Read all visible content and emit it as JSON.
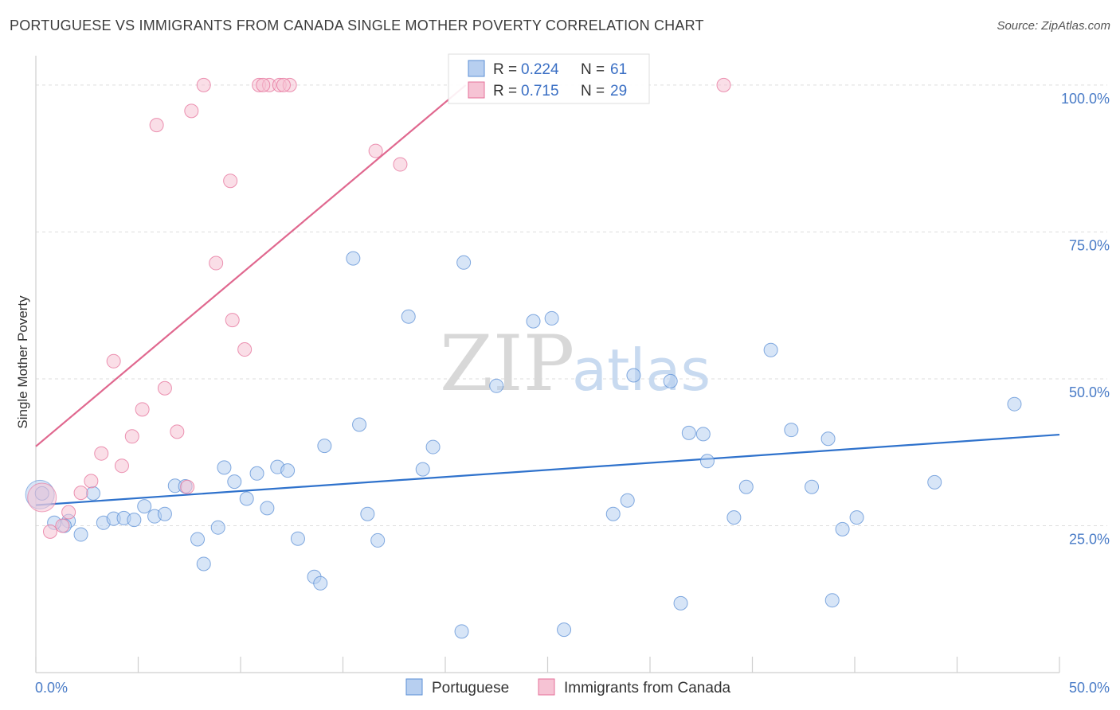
{
  "title": "PORTUGUESE VS IMMIGRANTS FROM CANADA SINGLE MOTHER POVERTY CORRELATION CHART",
  "source": "Source: ZipAtlas.com",
  "watermark": {
    "zip": "ZIP",
    "atlas": "atlas"
  },
  "colors": {
    "blue": "#5b8fd6",
    "blue_fill": "#b7cff0",
    "pink": "#e6709a",
    "pink_fill": "#f6c3d4",
    "blue_line": "#2f72cc",
    "pink_line": "#e0688f"
  },
  "legend": {
    "r_label": "R =",
    "n_label": "N =",
    "rows": [
      {
        "r": "0.224",
        "n": "61",
        "color": "blue"
      },
      {
        "r": "0.715",
        "n": "29",
        "color": "pink"
      }
    ]
  },
  "bottom_legend": [
    {
      "label": "Portuguese",
      "color": "blue"
    },
    {
      "label": "Immigrants from Canada",
      "color": "pink"
    }
  ],
  "chart_data": {
    "type": "scatter",
    "xlabel": "",
    "ylabel": "Single Mother Poverty",
    "xlim": [
      0,
      50
    ],
    "ylim": [
      0,
      105
    ],
    "x_tick_labels": [
      "0.0%",
      "50.0%"
    ],
    "y_ticks": [
      {
        "value": 100,
        "label": "100.0%"
      },
      {
        "value": 75,
        "label": "75.0%"
      },
      {
        "value": 50,
        "label": "50.0%"
      },
      {
        "value": 25,
        "label": "25.0%"
      }
    ],
    "series": [
      {
        "name": "Portuguese",
        "color": "blue",
        "trend": [
          [
            0,
            28.5
          ],
          [
            50,
            40.5
          ]
        ],
        "points": [
          [
            0.3,
            30.5
          ],
          [
            1.6,
            25.8
          ],
          [
            1.4,
            25.0
          ],
          [
            2.8,
            30.5
          ],
          [
            2.2,
            23.5
          ],
          [
            3.3,
            25.5
          ],
          [
            3.8,
            26.2
          ],
          [
            4.3,
            26.3
          ],
          [
            4.8,
            26.0
          ],
          [
            5.3,
            28.3
          ],
          [
            5.8,
            26.6
          ],
          [
            6.3,
            27.0
          ],
          [
            6.8,
            31.8
          ],
          [
            7.3,
            31.7
          ],
          [
            7.9,
            22.7
          ],
          [
            8.2,
            18.5
          ],
          [
            8.9,
            24.7
          ],
          [
            9.2,
            34.9
          ],
          [
            9.7,
            32.5
          ],
          [
            10.3,
            29.6
          ],
          [
            10.8,
            33.9
          ],
          [
            11.3,
            28.0
          ],
          [
            11.8,
            35.0
          ],
          [
            12.3,
            34.4
          ],
          [
            12.8,
            22.8
          ],
          [
            13.6,
            16.3
          ],
          [
            13.9,
            15.2
          ],
          [
            14.1,
            38.6
          ],
          [
            15.5,
            70.5
          ],
          [
            15.8,
            42.2
          ],
          [
            16.2,
            27.0
          ],
          [
            16.7,
            22.5
          ],
          [
            18.2,
            60.6
          ],
          [
            18.9,
            34.6
          ],
          [
            19.4,
            38.4
          ],
          [
            20.8,
            7.0
          ],
          [
            20.9,
            69.8
          ],
          [
            22.5,
            48.8
          ],
          [
            24.3,
            59.8
          ],
          [
            25.2,
            60.3
          ],
          [
            25.8,
            7.3
          ],
          [
            28.2,
            27.0
          ],
          [
            28.9,
            29.3
          ],
          [
            29.2,
            50.6
          ],
          [
            31.0,
            49.6
          ],
          [
            31.5,
            11.8
          ],
          [
            31.9,
            40.8
          ],
          [
            32.6,
            40.6
          ],
          [
            32.8,
            36.0
          ],
          [
            34.1,
            26.4
          ],
          [
            34.7,
            31.6
          ],
          [
            35.9,
            54.9
          ],
          [
            36.9,
            41.3
          ],
          [
            37.9,
            31.6
          ],
          [
            38.7,
            39.8
          ],
          [
            38.9,
            12.3
          ],
          [
            39.4,
            24.4
          ],
          [
            40.1,
            26.4
          ],
          [
            43.9,
            32.4
          ],
          [
            47.8,
            45.7
          ],
          [
            0.9,
            25.5
          ]
        ],
        "big_point": [
          0.2,
          30.3
        ]
      },
      {
        "name": "Immigrants from Canada",
        "color": "pink",
        "trend": [
          [
            0,
            38.5
          ],
          [
            21.0,
            100
          ]
        ],
        "points": [
          [
            0.7,
            24.0
          ],
          [
            1.3,
            25.0
          ],
          [
            1.6,
            27.3
          ],
          [
            2.2,
            30.6
          ],
          [
            2.7,
            32.6
          ],
          [
            3.2,
            37.3
          ],
          [
            3.8,
            53.0
          ],
          [
            4.2,
            35.2
          ],
          [
            4.7,
            40.2
          ],
          [
            5.2,
            44.8
          ],
          [
            5.9,
            93.2
          ],
          [
            6.3,
            48.4
          ],
          [
            6.9,
            41.0
          ],
          [
            7.4,
            31.6
          ],
          [
            7.6,
            95.6
          ],
          [
            8.2,
            100.0
          ],
          [
            8.8,
            69.7
          ],
          [
            9.5,
            83.7
          ],
          [
            9.6,
            60.0
          ],
          [
            10.2,
            55.0
          ],
          [
            10.9,
            100.0
          ],
          [
            11.4,
            100.0
          ],
          [
            11.9,
            100.0
          ],
          [
            12.4,
            100.0
          ],
          [
            16.6,
            88.8
          ],
          [
            17.8,
            86.5
          ],
          [
            33.6,
            100.0
          ],
          [
            12.1,
            100.0
          ],
          [
            11.1,
            100.0
          ]
        ],
        "big_point": [
          0.3,
          29.8
        ]
      }
    ],
    "grid": true,
    "legend_position": "top-center"
  }
}
